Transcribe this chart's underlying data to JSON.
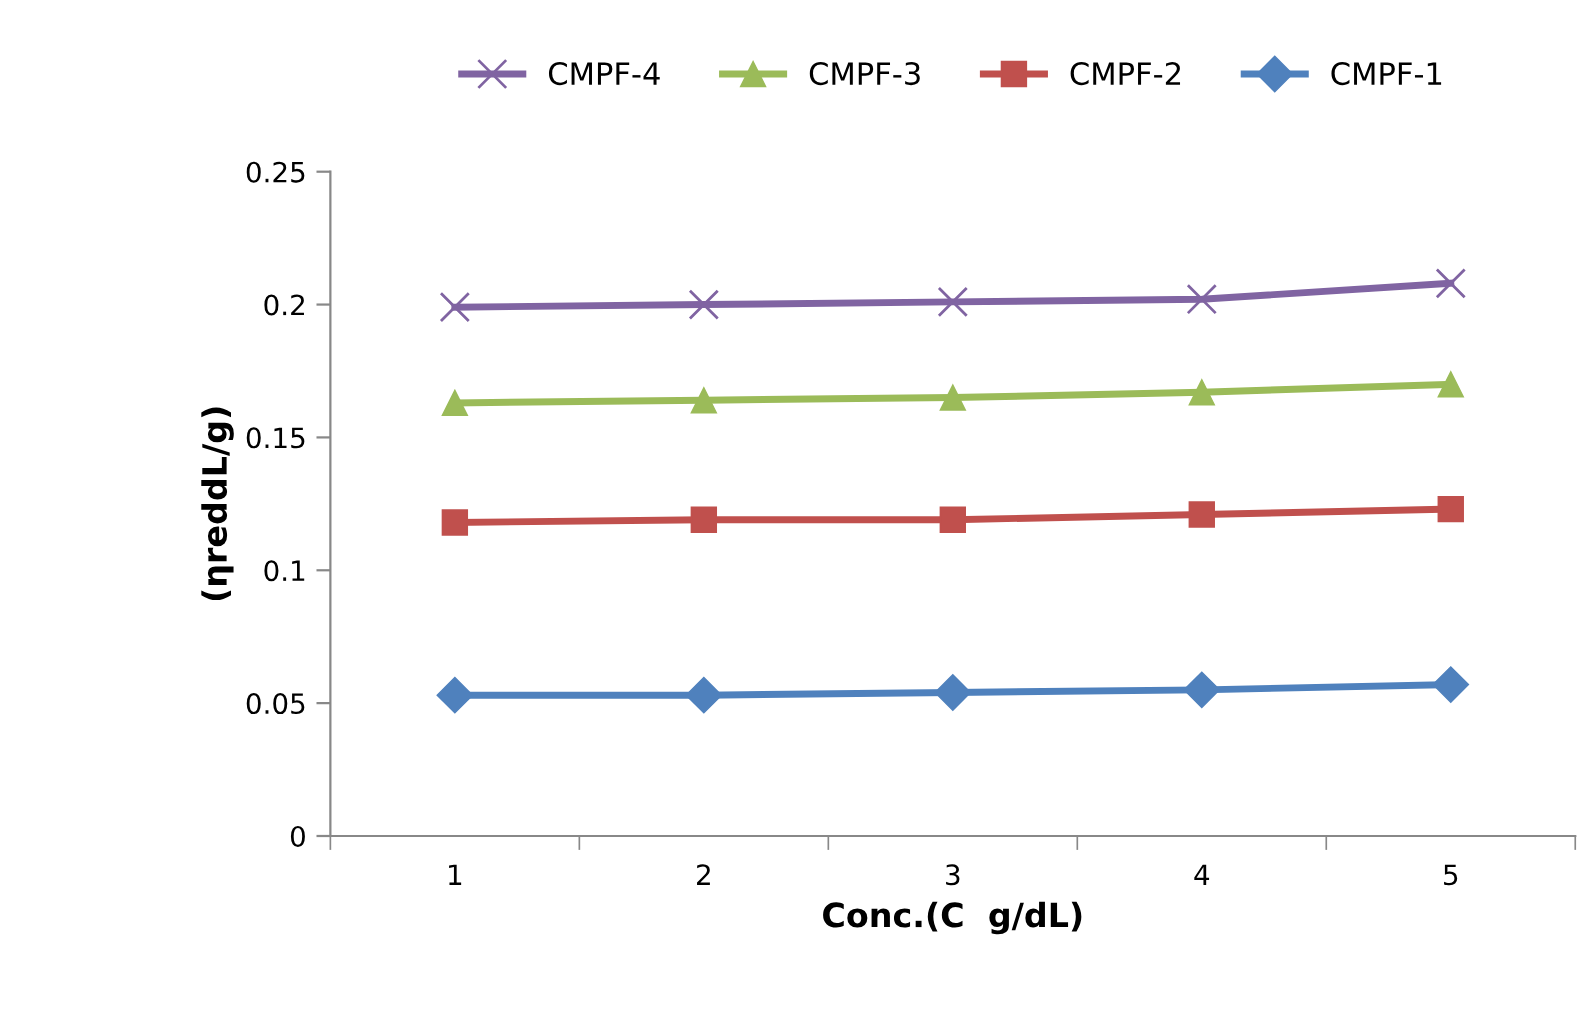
{
  "chart_data": {
    "type": "line",
    "xlabel": "Conc.(C  g/dL)",
    "ylabel": "(ηreddL/g)",
    "categories": [
      "1",
      "2",
      "3",
      "4",
      "5"
    ],
    "series": [
      {
        "name": "CMPF-4",
        "color": "#8064a2",
        "marker": "cross",
        "values": [
          0.199,
          0.2,
          0.201,
          0.202,
          0.208
        ]
      },
      {
        "name": "CMPF-3",
        "color": "#9bbb59",
        "marker": "triangle",
        "values": [
          0.163,
          0.164,
          0.165,
          0.167,
          0.17
        ]
      },
      {
        "name": "CMPF-2",
        "color": "#c0504d",
        "marker": "square",
        "values": [
          0.118,
          0.119,
          0.119,
          0.121,
          0.123
        ]
      },
      {
        "name": "CMPF-1",
        "color": "#4f81bd",
        "marker": "diamond",
        "values": [
          0.053,
          0.053,
          0.054,
          0.055,
          0.057
        ]
      }
    ],
    "ylim": [
      0,
      0.25
    ],
    "yticks": [
      {
        "value": 0,
        "label": "0"
      },
      0.05,
      {
        "value": 0.1,
        "label": "0.1"
      },
      0.15,
      {
        "value": 0.2,
        "label": "0.2"
      },
      0.25
    ],
    "grid": false,
    "legend": "top",
    "line_style": "solid"
  }
}
